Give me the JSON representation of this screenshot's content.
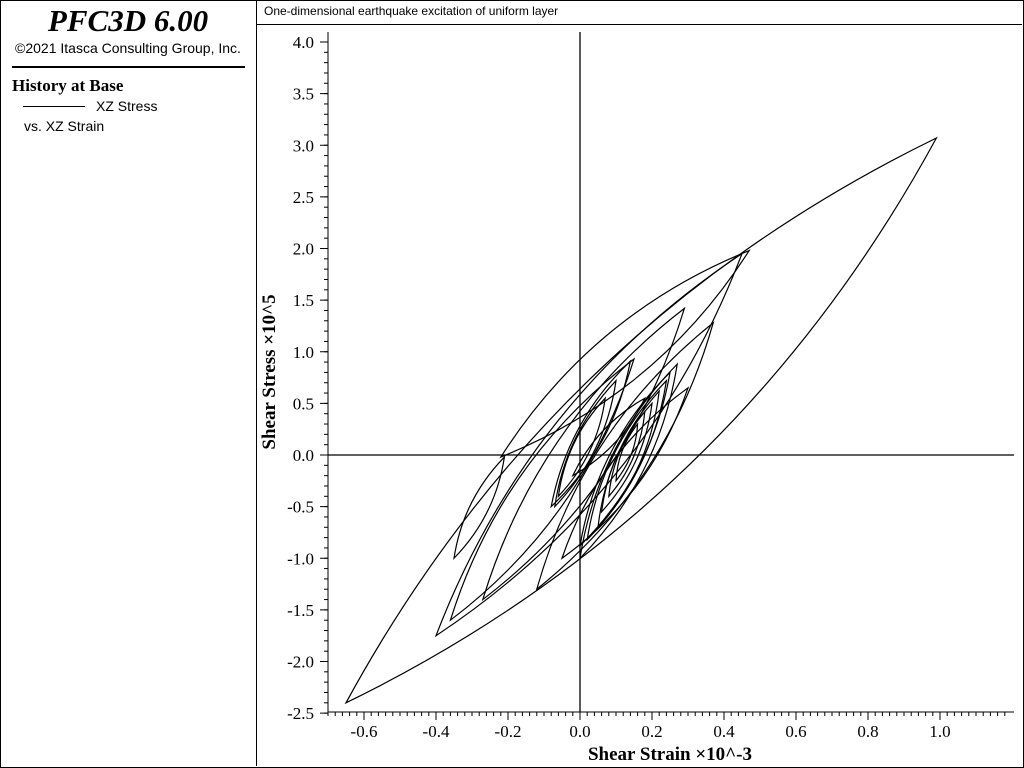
{
  "app": {
    "title": "PFC3D 6.00",
    "copyright": "©2021 Itasca Consulting Group, Inc."
  },
  "legend": {
    "title": "History at Base",
    "line1": "XZ Stress",
    "line2": "vs. XZ Strain"
  },
  "chart_data": {
    "type": "line",
    "title": "One-dimensional earthquake excitation of uniform layer",
    "xlabel": "Shear Strain ×10^-3",
    "ylabel": "Shear Stress ×10^5",
    "xlim": [
      -0.7,
      1.2
    ],
    "ylim": [
      -2.5,
      4.1
    ],
    "x_ticks": [
      "-0.6",
      "-0.4",
      "-0.2",
      "0.0",
      "0.2",
      "0.4",
      "0.6",
      "0.8",
      "1.0"
    ],
    "y_ticks": [
      "4.0",
      "3.5",
      "3.0",
      "2.5",
      "2.0",
      "1.5",
      "1.0",
      "0.5",
      "0.0",
      "-0.5",
      "-1.0",
      "-1.5",
      "-2.0",
      "-2.5"
    ],
    "grid": false,
    "legend_position": "left-panel",
    "series": [
      {
        "loops": [
          [
            [
              -0.65,
              -2.4
            ],
            [
              0.99,
              3.07
            ]
          ],
          [
            [
              -0.22,
              -0.02
            ],
            [
              0.47,
              1.98
            ]
          ],
          [
            [
              -0.4,
              -1.75
            ],
            [
              0.45,
              1.95
            ]
          ],
          [
            [
              -0.35,
              -1.0
            ],
            [
              -0.21,
              -0.02
            ]
          ],
          [
            [
              -0.27,
              -1.4
            ],
            [
              0.29,
              1.42
            ]
          ],
          [
            [
              -0.12,
              -1.3
            ],
            [
              0.37,
              1.28
            ]
          ],
          [
            [
              -0.36,
              -1.6
            ],
            [
              0.15,
              0.93
            ]
          ],
          [
            [
              -0.08,
              -0.5
            ],
            [
              0.14,
              0.91
            ]
          ],
          [
            [
              -0.07,
              -0.5
            ],
            [
              0.1,
              0.72
            ]
          ],
          [
            [
              -0.06,
              -0.4
            ],
            [
              0.07,
              0.55
            ]
          ],
          [
            [
              0.0,
              -1.0
            ],
            [
              0.27,
              0.88
            ]
          ],
          [
            [
              0.0,
              -0.88
            ],
            [
              0.25,
              0.8
            ]
          ],
          [
            [
              0.02,
              -0.82
            ],
            [
              0.24,
              0.72
            ]
          ],
          [
            [
              0.05,
              -0.7
            ],
            [
              0.22,
              0.62
            ]
          ],
          [
            [
              0.06,
              -0.55
            ],
            [
              0.2,
              0.5
            ]
          ],
          [
            [
              0.08,
              -0.4
            ],
            [
              0.18,
              0.42
            ]
          ],
          [
            [
              0.1,
              -0.25
            ],
            [
              0.16,
              0.3
            ]
          ],
          [
            [
              -0.02,
              -0.2
            ],
            [
              0.18,
              0.55
            ]
          ],
          [
            [
              -0.05,
              -1.0
            ],
            [
              0.3,
              0.65
            ]
          ]
        ]
      }
    ]
  }
}
